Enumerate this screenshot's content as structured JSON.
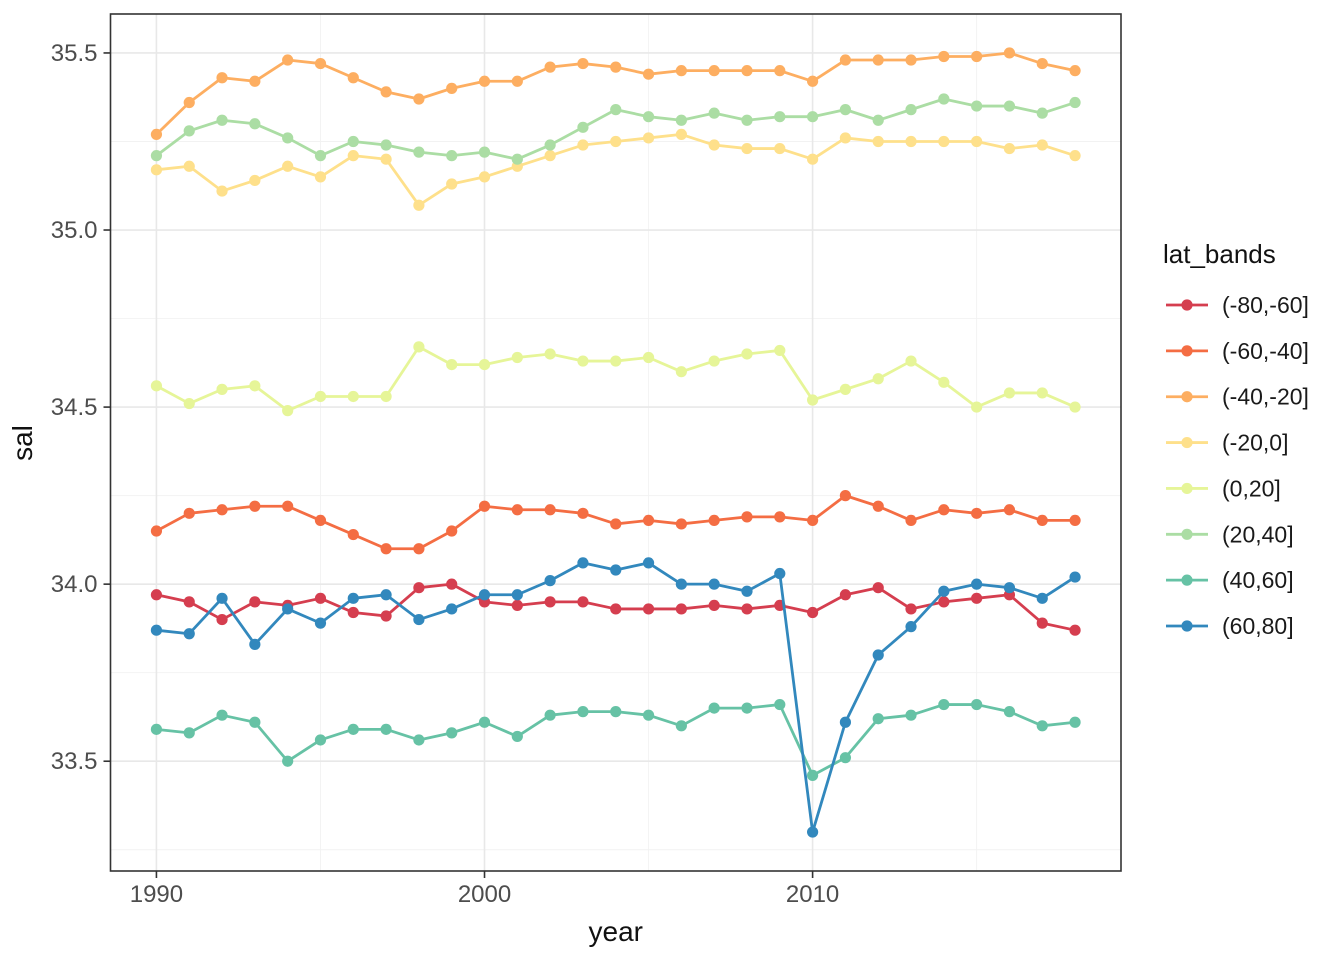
{
  "chart_data": {
    "type": "line",
    "title": "",
    "xlabel": "year",
    "ylabel": "sal",
    "legend_title": "lat_bands",
    "legend_position": "right",
    "grid": true,
    "x": [
      1990,
      1991,
      1992,
      1993,
      1994,
      1995,
      1996,
      1997,
      1998,
      1999,
      2000,
      2001,
      2002,
      2003,
      2004,
      2005,
      2006,
      2007,
      2008,
      2009,
      2010,
      2011,
      2012,
      2013,
      2014,
      2015,
      2016,
      2017,
      2018
    ],
    "xlim": [
      1988.6,
      2019.4
    ],
    "ylim": [
      33.19,
      35.61
    ],
    "x_ticks": [
      1990,
      2000,
      2010
    ],
    "x_tick_labels": [
      "1990",
      "2000",
      "2010"
    ],
    "x_minor_ticks": [
      1995,
      2005,
      2015
    ],
    "y_ticks": [
      33.5,
      34.0,
      34.5,
      35.0,
      35.5
    ],
    "y_tick_labels": [
      "33.5",
      "34.0",
      "34.5",
      "35.0",
      "35.5"
    ],
    "y_minor_ticks": [
      33.25,
      33.75,
      34.25,
      34.75,
      35.25
    ],
    "series": [
      {
        "name": "(-80,-60]",
        "color": "#D53E4F",
        "values": [
          33.97,
          33.95,
          33.9,
          33.95,
          33.94,
          33.96,
          33.92,
          33.91,
          33.99,
          34.0,
          33.95,
          33.94,
          33.95,
          33.95,
          33.93,
          33.93,
          33.93,
          33.94,
          33.93,
          33.94,
          33.92,
          33.97,
          33.99,
          33.93,
          33.95,
          33.96,
          33.97,
          33.89,
          33.87
        ]
      },
      {
        "name": "(-60,-40]",
        "color": "#F46D43",
        "values": [
          34.15,
          34.2,
          34.21,
          34.22,
          34.22,
          34.18,
          34.14,
          34.1,
          34.1,
          34.15,
          34.22,
          34.21,
          34.21,
          34.2,
          34.17,
          34.18,
          34.17,
          34.18,
          34.19,
          34.19,
          34.18,
          34.25,
          34.22,
          34.18,
          34.21,
          34.2,
          34.21,
          34.18,
          34.18
        ]
      },
      {
        "name": "(-40,-20]",
        "color": "#FDAE61",
        "values": [
          35.27,
          35.36,
          35.43,
          35.42,
          35.48,
          35.47,
          35.43,
          35.39,
          35.37,
          35.4,
          35.42,
          35.42,
          35.46,
          35.47,
          35.46,
          35.44,
          35.45,
          35.45,
          35.45,
          35.45,
          35.42,
          35.48,
          35.48,
          35.48,
          35.49,
          35.49,
          35.5,
          35.47,
          35.45
        ]
      },
      {
        "name": "(-20,0]",
        "color": "#FEE08B",
        "values": [
          35.17,
          35.18,
          35.11,
          35.14,
          35.18,
          35.15,
          35.21,
          35.2,
          35.07,
          35.13,
          35.15,
          35.18,
          35.21,
          35.24,
          35.25,
          35.26,
          35.27,
          35.24,
          35.23,
          35.23,
          35.2,
          35.26,
          35.25,
          35.25,
          35.25,
          35.25,
          35.23,
          35.24,
          35.21
        ]
      },
      {
        "name": "(0,20]",
        "color": "#E6F598",
        "values": [
          34.56,
          34.51,
          34.55,
          34.56,
          34.49,
          34.53,
          34.53,
          34.53,
          34.67,
          34.62,
          34.62,
          34.64,
          34.65,
          34.63,
          34.63,
          34.64,
          34.6,
          34.63,
          34.65,
          34.66,
          34.52,
          34.55,
          34.58,
          34.63,
          34.57,
          34.5,
          34.54,
          34.54,
          34.5
        ]
      },
      {
        "name": "(20,40]",
        "color": "#ABDDA4",
        "values": [
          35.21,
          35.28,
          35.31,
          35.3,
          35.26,
          35.21,
          35.25,
          35.24,
          35.22,
          35.21,
          35.22,
          35.2,
          35.24,
          35.29,
          35.34,
          35.32,
          35.31,
          35.33,
          35.31,
          35.32,
          35.32,
          35.34,
          35.31,
          35.34,
          35.37,
          35.35,
          35.35,
          35.33,
          35.36
        ]
      },
      {
        "name": "(40,60]",
        "color": "#66C2A5",
        "values": [
          33.59,
          33.58,
          33.63,
          33.61,
          33.5,
          33.56,
          33.59,
          33.59,
          33.56,
          33.58,
          33.61,
          33.57,
          33.63,
          33.64,
          33.64,
          33.63,
          33.6,
          33.65,
          33.65,
          33.66,
          33.46,
          33.51,
          33.62,
          33.63,
          33.66,
          33.66,
          33.64,
          33.6,
          33.61
        ]
      },
      {
        "name": "(60,80]",
        "color": "#3288BD",
        "values": [
          33.87,
          33.86,
          33.96,
          33.83,
          33.93,
          33.89,
          33.96,
          33.97,
          33.9,
          33.93,
          33.97,
          33.97,
          34.01,
          34.06,
          34.04,
          34.06,
          34.0,
          34.0,
          33.98,
          34.03,
          33.3,
          33.61,
          33.8,
          33.88,
          33.98,
          34.0,
          33.99,
          33.96,
          34.02
        ]
      }
    ]
  },
  "style": {
    "background_color": "#FFFFFF",
    "panel_background": "#FFFFFF",
    "panel_border_color": "#333333",
    "grid_major_color": "#E8E8E8",
    "grid_minor_color": "#F2F2F2",
    "tick_mark_color": "#333333",
    "tick_label_color": "#4D4D4D",
    "axis_title_color": "#111111",
    "legend_title_color": "#111111",
    "legend_text_color": "#1A1A1A"
  }
}
